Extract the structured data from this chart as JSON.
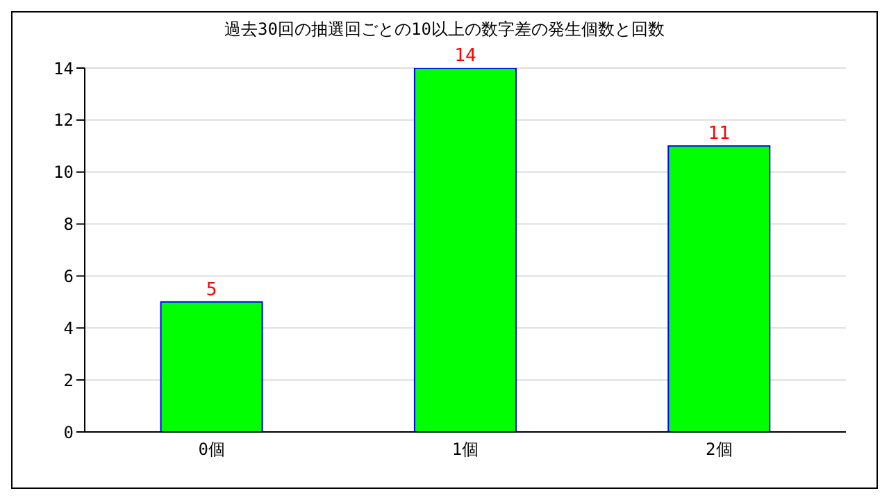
{
  "chart_data": {
    "type": "bar",
    "title": "過去30回の抽選回ごとの10以上の数字差の発生個数と回数",
    "categories": [
      "0個",
      "1個",
      "2個"
    ],
    "series": [
      {
        "color": "#00ff00",
        "values": [
          5,
          14,
          11
        ]
      }
    ],
    "ylim": [
      0,
      14
    ],
    "yticks": [
      0,
      2,
      4,
      6,
      8,
      10,
      12,
      14
    ],
    "grid": "y",
    "data_labels": true
  }
}
